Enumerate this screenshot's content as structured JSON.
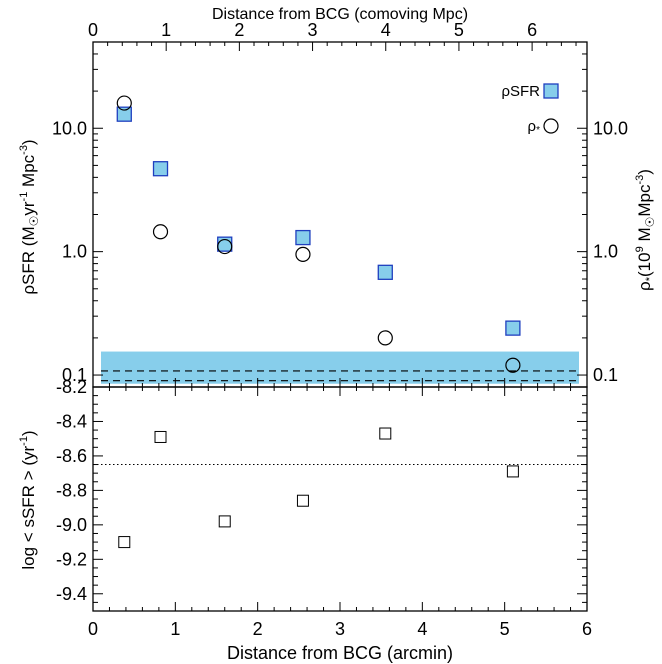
{
  "chart_data": [
    {
      "type": "scatter",
      "panel": "top",
      "xlabel_top": "Distance from BCG (comoving Mpc)",
      "ylabel": {
        "main": "ρSFR (M",
        "sun": "☉",
        "mid": "yr",
        "exp1": "-1",
        "mid2": " Mpc",
        "exp2": "-3",
        "end": ")"
      },
      "ylabel_right": {
        "main": "ρ",
        "star": "*",
        "open": "(10",
        "exp1": "9",
        "mid": " M",
        "sun": "☉",
        "mpc": "Mpc",
        "exp2": "-3",
        "end": ")"
      },
      "x_top_ticks": [
        "0",
        "1",
        "2",
        "3",
        "4",
        "5",
        "6"
      ],
      "x_top_range_mpc": [
        0,
        6.75
      ],
      "y_scale": "log",
      "ylim": [
        0.08,
        50
      ],
      "y_ticks": [
        {
          "value": 10,
          "label": "10.0"
        },
        {
          "value": 1,
          "label": "1.0"
        },
        {
          "value": 0.1,
          "label": "0.1"
        }
      ],
      "series": [
        {
          "name": "ρSFR",
          "marker": "square",
          "color": "#87ceeb",
          "edge": "#1f3fbf",
          "x": [
            0.38,
            0.82,
            1.6,
            2.55,
            3.55,
            5.1
          ],
          "y": [
            13,
            4.7,
            1.15,
            1.3,
            0.68,
            0.24
          ]
        },
        {
          "name": "ρ*",
          "marker": "circle",
          "color": "#ffffff",
          "edge": "#000000",
          "x": [
            0.38,
            0.82,
            1.6,
            2.55,
            3.55,
            5.1
          ],
          "y": [
            16,
            1.45,
            1.1,
            0.95,
            0.2,
            0.12
          ]
        }
      ],
      "shaded_band": {
        "y": [
          0.085,
          0.155
        ],
        "color": "#87ceeb"
      },
      "dashed_lines_y": [
        0.108,
        0.09
      ],
      "legend": {
        "placement": "top-right",
        "items": [
          "ρSFR",
          "ρ*"
        ]
      }
    },
    {
      "type": "scatter",
      "panel": "bottom",
      "xlabel": "Distance from BCG (arcmin)",
      "ylabel": {
        "main": "log < sSFR >  (yr",
        "exp": "-1",
        "end": ")"
      },
      "xlim": [
        0,
        6
      ],
      "x_ticks": [
        "0",
        "1",
        "2",
        "3",
        "4",
        "5",
        "6"
      ],
      "ylim": [
        -9.5,
        -8.2
      ],
      "y_ticks": [
        "-8.2",
        "-8.4",
        "-8.6",
        "-8.8",
        "-9.0",
        "-9.2",
        "-9.4"
      ],
      "series": [
        {
          "name": "",
          "marker": "square",
          "color": "#ffffff",
          "edge": "#000000",
          "x": [
            0.38,
            0.82,
            1.6,
            2.55,
            3.55,
            5.1
          ],
          "y": [
            -9.1,
            -8.49,
            -8.98,
            -8.86,
            -8.47,
            -8.69
          ]
        }
      ],
      "dotted_line_y": -8.65
    }
  ]
}
